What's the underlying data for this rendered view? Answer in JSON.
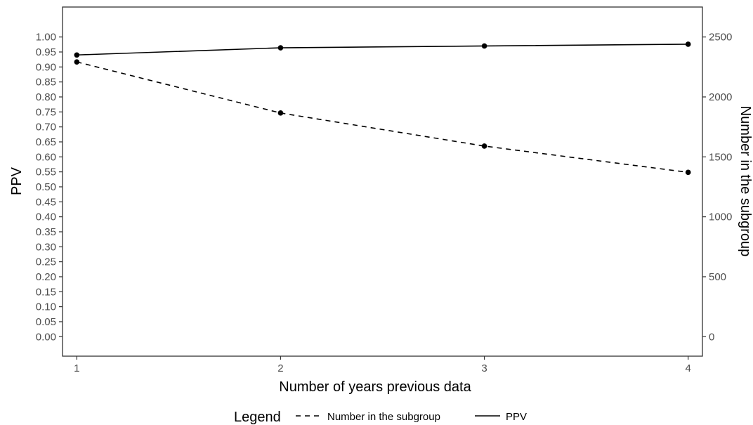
{
  "chart_data": {
    "type": "line",
    "xlabel": "Number of years previous data",
    "ylabel_left": "PPV",
    "ylabel_right": "Number in the subgroup",
    "x": [
      1,
      2,
      3,
      4
    ],
    "x_ticks": [
      "1",
      "2",
      "3",
      "4"
    ],
    "xlim": [
      0.93,
      4.07
    ],
    "ylim_left": [
      -0.065,
      1.1
    ],
    "ylim_right": [
      -162.5,
      2750
    ],
    "y_ticks_left": [
      "0.00",
      "0.05",
      "0.10",
      "0.15",
      "0.20",
      "0.25",
      "0.30",
      "0.35",
      "0.40",
      "0.45",
      "0.50",
      "0.55",
      "0.60",
      "0.65",
      "0.70",
      "0.75",
      "0.80",
      "0.85",
      "0.90",
      "0.95",
      "1.00"
    ],
    "y_ticks_right": [
      "0",
      "500",
      "1000",
      "1500",
      "2000",
      "2500"
    ],
    "grid": false,
    "legend_position": "bottom",
    "legend_title": "Legend",
    "series": [
      {
        "name": "Number in the subgroup",
        "axis": "right",
        "line_style": "dashed",
        "color": "#000000",
        "values": [
          2292,
          1866,
          1590,
          1371
        ]
      },
      {
        "name": "PPV",
        "axis": "left",
        "line_style": "solid",
        "color": "#000000",
        "values": [
          0.94,
          0.964,
          0.97,
          0.976
        ]
      }
    ]
  }
}
